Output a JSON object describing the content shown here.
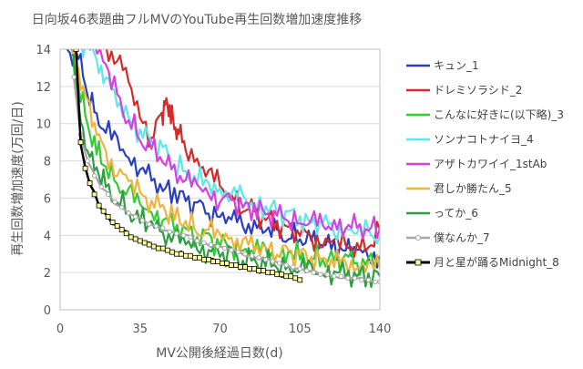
{
  "chart_data": {
    "type": "line",
    "title": "日向坂46表題曲フルMVのYouTube再生回数増加速度推移",
    "xlabel": "MV公開後経過日数(d)",
    "ylabel": "再生回数増加速度(万回/日)",
    "xlim": [
      0,
      140
    ],
    "ylim": [
      0,
      14
    ],
    "xticks": [
      0,
      35,
      70,
      105,
      140
    ],
    "yticks": [
      0,
      2,
      4,
      6,
      8,
      10,
      12,
      14
    ],
    "grid": "horizontal",
    "legend_position": "right",
    "series": [
      {
        "name": "キュン_1",
        "color": "#2a3fbf",
        "marker": "none",
        "x": [
          3,
          8,
          12,
          16,
          20,
          25,
          30,
          35,
          40,
          45,
          50,
          55,
          60,
          65,
          70,
          75,
          80,
          85,
          90,
          95,
          100,
          105,
          110,
          115,
          120,
          125,
          130,
          135,
          140
        ],
        "y": [
          14,
          13.5,
          11.8,
          10.4,
          9.6,
          9.0,
          8.2,
          7.6,
          7.0,
          6.6,
          6.3,
          5.9,
          5.5,
          5.3,
          5.1,
          4.9,
          4.6,
          4.5,
          4.3,
          4.1,
          4.0,
          3.9,
          3.7,
          3.5,
          3.4,
          3.3,
          3.1,
          3.0,
          2.9
        ]
      },
      {
        "name": "ドレミソラシド_2",
        "color": "#d42a2a",
        "marker": "none",
        "x": [
          20,
          25,
          30,
          35,
          40,
          44,
          46,
          48,
          50,
          52,
          55,
          60,
          65,
          70,
          75,
          80,
          85,
          90,
          95,
          100,
          105,
          110,
          115,
          120,
          125,
          130,
          135,
          140
        ],
        "y": [
          14,
          13.6,
          12.2,
          10.5,
          9.2,
          10.3,
          11.0,
          10.8,
          10.0,
          9.4,
          8.7,
          8.0,
          7.3,
          6.7,
          6.1,
          5.6,
          5.2,
          4.9,
          4.6,
          4.3,
          4.1,
          3.9,
          3.7,
          3.6,
          3.5,
          3.4,
          3.3,
          4.3
        ]
      },
      {
        "name": "こんなに好きに(以下略)_3",
        "color": "#33cc33",
        "marker": "none",
        "x": [
          5,
          8,
          12,
          16,
          20,
          25,
          30,
          35,
          40,
          45,
          50,
          55,
          60,
          65,
          70,
          75,
          80,
          85,
          90,
          95,
          100,
          105,
          110,
          115,
          120,
          125,
          130,
          135,
          140
        ],
        "y": [
          14,
          12,
          10,
          8.6,
          7.6,
          6.9,
          6.2,
          5.7,
          5.2,
          4.9,
          4.5,
          4.2,
          4.0,
          3.8,
          3.5,
          3.4,
          3.3,
          3.2,
          3.1,
          3.0,
          2.9,
          2.9,
          2.8,
          2.8,
          2.7,
          2.7,
          2.6,
          2.6,
          2.6
        ]
      },
      {
        "name": "ソンナコトナイヨ_4",
        "color": "#5ce8e8",
        "marker": "none",
        "x": [
          8,
          12,
          16,
          20,
          25,
          30,
          35,
          40,
          45,
          50,
          55,
          60,
          65,
          70,
          75,
          80,
          85,
          90,
          95,
          100,
          105,
          110,
          115,
          120,
          125,
          130,
          135,
          140
        ],
        "y": [
          14,
          14,
          13.6,
          12.4,
          11.2,
          10.3,
          9.6,
          9.0,
          8.5,
          7.9,
          7.4,
          7.0,
          6.7,
          6.4,
          6.2,
          6.0,
          5.7,
          5.5,
          5.3,
          5.1,
          4.9,
          4.7,
          4.6,
          4.4,
          4.3,
          4.2,
          4.1,
          4.0
        ]
      },
      {
        "name": "アザトカワイイ_1stAb",
        "color": "#d640e0",
        "marker": "none",
        "x": [
          15,
          20,
          25,
          30,
          35,
          40,
          45,
          50,
          55,
          60,
          65,
          70,
          75,
          80,
          85,
          90,
          95,
          100,
          105,
          110,
          115,
          120,
          125,
          130,
          135,
          140
        ],
        "y": [
          14,
          13.2,
          11.4,
          10.2,
          9.3,
          8.6,
          8.1,
          7.5,
          7.0,
          6.6,
          6.3,
          6.0,
          5.8,
          5.6,
          5.4,
          5.2,
          5.0,
          4.9,
          4.8,
          4.7,
          4.6,
          4.5,
          4.5,
          4.4,
          4.4,
          4.4
        ]
      },
      {
        "name": "君しか勝たん_5",
        "color": "#f0b43c",
        "marker": "none",
        "x": [
          5,
          8,
          12,
          16,
          20,
          25,
          30,
          35,
          40,
          45,
          50,
          55,
          60,
          65,
          70,
          75,
          80,
          85,
          90,
          95,
          100,
          105,
          110,
          115,
          120,
          125,
          130,
          135,
          140
        ],
        "y": [
          14,
          13,
          11,
          9.5,
          8.4,
          7.5,
          6.9,
          6.3,
          5.8,
          5.4,
          5.0,
          4.7,
          4.4,
          4.2,
          4.0,
          3.8,
          3.6,
          3.4,
          3.3,
          3.2,
          3.0,
          2.9,
          2.8,
          2.7,
          2.6,
          2.5,
          2.4,
          2.3,
          2.2
        ]
      },
      {
        "name": "ってか_6",
        "color": "#2e9e44",
        "marker": "none",
        "x": [
          5,
          8,
          12,
          16,
          20,
          25,
          30,
          35,
          40,
          45,
          50,
          55,
          60,
          65,
          70,
          75,
          80,
          85,
          90,
          95,
          100,
          105,
          110,
          115,
          120,
          125,
          130,
          135,
          140
        ],
        "y": [
          14,
          11,
          8.6,
          7.4,
          6.6,
          5.9,
          5.3,
          4.9,
          4.5,
          4.2,
          3.9,
          3.6,
          3.4,
          3.2,
          3.0,
          2.9,
          2.7,
          2.6,
          2.5,
          2.4,
          2.3,
          2.2,
          2.1,
          2.0,
          2.0,
          1.9,
          1.9,
          1.8,
          1.8
        ]
      },
      {
        "name": "僕なんか_7",
        "color": "#a6a6a6",
        "marker": "circle",
        "x": [
          6,
          9,
          12,
          15,
          18,
          21,
          24,
          27,
          30,
          33,
          36,
          39,
          42,
          45,
          48,
          51,
          54,
          57,
          60,
          63,
          66,
          69,
          72,
          75,
          78,
          81,
          84,
          87,
          90,
          93,
          96,
          99,
          102,
          105,
          108,
          111,
          114,
          117,
          120,
          123,
          126,
          129,
          132,
          135,
          138,
          140
        ],
        "y": [
          12.5,
          9.4,
          8.0,
          7.2,
          6.6,
          6.2,
          5.8,
          5.5,
          5.2,
          5.0,
          4.8,
          4.6,
          4.5,
          4.4,
          4.2,
          4.1,
          4.0,
          3.9,
          3.7,
          3.6,
          3.5,
          3.4,
          3.3,
          3.2,
          3.1,
          3.0,
          2.9,
          2.8,
          2.7,
          2.6,
          2.5,
          2.4,
          2.3,
          2.2,
          2.1,
          2.0,
          1.9,
          1.9,
          1.8,
          1.8,
          1.7,
          1.7,
          1.6,
          1.6,
          1.5,
          1.5
        ]
      },
      {
        "name": "月と星が踊るMidnight_8",
        "color": "#000000",
        "marker": "square-yellow",
        "x": [
          7,
          9,
          11,
          13,
          15,
          17,
          19,
          21,
          23,
          25,
          27,
          29,
          31,
          33,
          35,
          37,
          39,
          41,
          43,
          45,
          47,
          49,
          51,
          53,
          55,
          57,
          59,
          61,
          63,
          65,
          67,
          69,
          71,
          73,
          75,
          77,
          79,
          81,
          83,
          85,
          87,
          89,
          91,
          93,
          95,
          97,
          99,
          101,
          103,
          105
        ],
        "y": [
          14,
          9.0,
          7.6,
          6.8,
          6.2,
          5.6,
          5.3,
          5.0,
          4.7,
          4.5,
          4.3,
          4.1,
          3.9,
          3.8,
          3.7,
          3.6,
          3.5,
          3.4,
          3.3,
          3.3,
          3.2,
          3.1,
          3.0,
          3.0,
          2.9,
          2.9,
          2.8,
          2.8,
          2.7,
          2.7,
          2.6,
          2.6,
          2.5,
          2.5,
          2.4,
          2.4,
          2.3,
          2.3,
          2.2,
          2.2,
          2.1,
          2.1,
          2.0,
          2.0,
          1.9,
          1.9,
          1.8,
          1.8,
          1.7,
          1.6
        ]
      }
    ]
  }
}
